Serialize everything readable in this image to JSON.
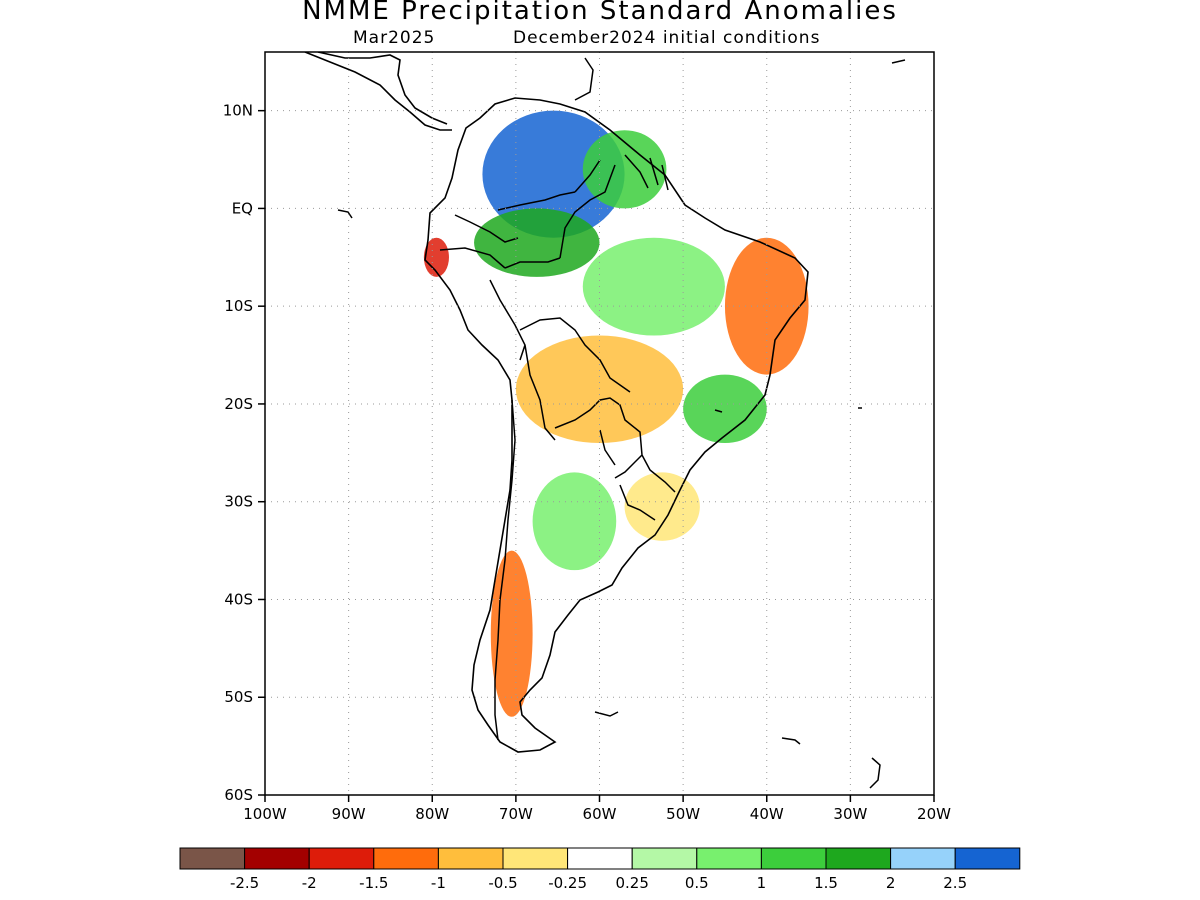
{
  "title": "NMME Precipitation Standard Anomalies",
  "subtitle_left": "Mar2025",
  "subtitle_right": "December2024 initial conditions",
  "map": {
    "lon_range": [
      -100,
      -20
    ],
    "lat_range": [
      -60,
      16
    ],
    "lat_ticks": [
      {
        "value": 10,
        "label": "10N"
      },
      {
        "value": 0,
        "label": "EQ"
      },
      {
        "value": -10,
        "label": "10S"
      },
      {
        "value": -20,
        "label": "20S"
      },
      {
        "value": -30,
        "label": "30S"
      },
      {
        "value": -40,
        "label": "40S"
      },
      {
        "value": -50,
        "label": "50S"
      },
      {
        "value": -60,
        "label": "60S"
      }
    ],
    "lon_ticks": [
      {
        "value": -100,
        "label": "100W"
      },
      {
        "value": -90,
        "label": "90W"
      },
      {
        "value": -80,
        "label": "80W"
      },
      {
        "value": -70,
        "label": "70W"
      },
      {
        "value": -60,
        "label": "60W"
      },
      {
        "value": -50,
        "label": "50W"
      },
      {
        "value": -40,
        "label": "40W"
      },
      {
        "value": -30,
        "label": "30W"
      },
      {
        "value": -20,
        "label": "20W"
      }
    ],
    "grid": "dotted"
  },
  "colorbar": {
    "colors": [
      "#7a5548",
      "#a30000",
      "#dd1c0a",
      "#ff6c0c",
      "#ffbe3c",
      "#ffe678",
      "#ffffff",
      "#b4f8a6",
      "#78f06e",
      "#3cce3c",
      "#1ea81e",
      "#96d2fa",
      "#1564d2"
    ],
    "labels": [
      "-2.5",
      "-2",
      "-1.5",
      "-1",
      "-0.5",
      "-0.25",
      "0.25",
      "0.5",
      "1",
      "1.5",
      "2",
      "2.5"
    ]
  },
  "anomaly_regions": [
    {
      "name": "venezuela-colombia-wet",
      "lon": [
        -74,
        -57
      ],
      "lat": [
        -3,
        10
      ],
      "value": 2.6
    },
    {
      "name": "guianas-wet",
      "lon": [
        -62,
        -52
      ],
      "lat": [
        0,
        8
      ],
      "value": 1.2
    },
    {
      "name": "western-amazon-wet",
      "lon": [
        -75,
        -60
      ],
      "lat": [
        -7,
        0
      ],
      "value": 1.6
    },
    {
      "name": "central-amazon-light-wet",
      "lon": [
        -62,
        -45
      ],
      "lat": [
        -13,
        -3
      ],
      "value": 0.6
    },
    {
      "name": "northeast-brazil-dry",
      "lon": [
        -45,
        -35
      ],
      "lat": [
        -17,
        -3
      ],
      "value": -1.1
    },
    {
      "name": "central-west-brazil-dry",
      "lon": [
        -70,
        -50
      ],
      "lat": [
        -24,
        -13
      ],
      "value": -0.8
    },
    {
      "name": "southeast-brazil-wet",
      "lon": [
        -50,
        -40
      ],
      "lat": [
        -24,
        -17
      ],
      "value": 1.3
    },
    {
      "name": "southern-brazil-dry",
      "lon": [
        -57,
        -48
      ],
      "lat": [
        -34,
        -27
      ],
      "value": -0.4
    },
    {
      "name": "central-argentina-wet",
      "lon": [
        -68,
        -58
      ],
      "lat": [
        -37,
        -27
      ],
      "value": 0.7
    },
    {
      "name": "patagonia-andes-dry",
      "lon": [
        -73,
        -68
      ],
      "lat": [
        -52,
        -35
      ],
      "value": -1.3
    },
    {
      "name": "northern-peru-dry",
      "lon": [
        -81,
        -78
      ],
      "lat": [
        -7,
        -3
      ],
      "value": -1.7
    }
  ]
}
